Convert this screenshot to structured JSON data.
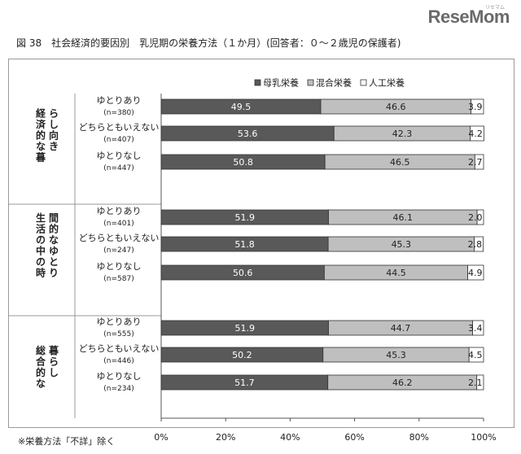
{
  "logo": {
    "text": "ReseMom",
    "sub": "リセマム"
  },
  "title": "図 38　社会経済的要因別　乳児期の栄養方法（１か月）(回答者：０～２歳児の保護者)",
  "note": "※栄養方法「不詳」除く",
  "chart_data": {
    "type": "bar",
    "orientation": "horizontal",
    "stacked": "percent",
    "xlim": [
      0,
      100
    ],
    "ticks": [
      "0%",
      "20%",
      "40%",
      "60%",
      "80%",
      "100%"
    ],
    "legend_position": "top",
    "series": [
      {
        "name": "母乳栄養",
        "color": "#595959"
      },
      {
        "name": "混合栄養",
        "color": "#bfbfbf"
      },
      {
        "name": "人工栄養",
        "color": "#ffffff"
      }
    ],
    "groups": [
      {
        "label": "経済的な暮らし向き",
        "rows": [
          {
            "label": "ゆとりあり",
            "n": "(n=380)",
            "values": [
              49.5,
              46.6,
              3.9
            ],
            "labels": [
              "49.5",
              "46.6",
              "3.9"
            ]
          },
          {
            "label": "どちらともいえない",
            "n": "(n=407)",
            "values": [
              53.6,
              42.3,
              4.2
            ],
            "labels": [
              "53.6",
              "42.3",
              "4.2"
            ]
          },
          {
            "label": "ゆとりなし",
            "n": "(n=447)",
            "values": [
              50.8,
              46.5,
              2.7
            ],
            "labels": [
              "50.8",
              "46.5",
              "2.7"
            ]
          }
        ]
      },
      {
        "label": "生活の中の時間的なゆとり",
        "rows": [
          {
            "label": "ゆとりあり",
            "n": "(n=401)",
            "values": [
              51.9,
              46.1,
              2.0
            ],
            "labels": [
              "51.9",
              "46.1",
              "2.0"
            ]
          },
          {
            "label": "どちらともいえない",
            "n": "(n=247)",
            "values": [
              51.8,
              45.3,
              2.8
            ],
            "labels": [
              "51.8",
              "45.3",
              "2.8"
            ]
          },
          {
            "label": "ゆとりなし",
            "n": "(n=587)",
            "values": [
              50.6,
              44.5,
              4.9
            ],
            "labels": [
              "50.6",
              "44.5",
              "4.9"
            ]
          }
        ]
      },
      {
        "label": "総合的な暮らし",
        "rows": [
          {
            "label": "ゆとりあり",
            "n": "(n=555)",
            "values": [
              51.9,
              44.7,
              3.4
            ],
            "labels": [
              "51.9",
              "44.7",
              "3.4"
            ]
          },
          {
            "label": "どちらともいえない",
            "n": "(n=446)",
            "values": [
              50.2,
              45.3,
              4.5
            ],
            "labels": [
              "50.2",
              "45.3",
              "4.5"
            ]
          },
          {
            "label": "ゆとりなし",
            "n": "(n=234)",
            "values": [
              51.7,
              46.2,
              2.1
            ],
            "labels": [
              "51.7",
              "46.2",
              "2.1"
            ]
          }
        ]
      }
    ]
  }
}
